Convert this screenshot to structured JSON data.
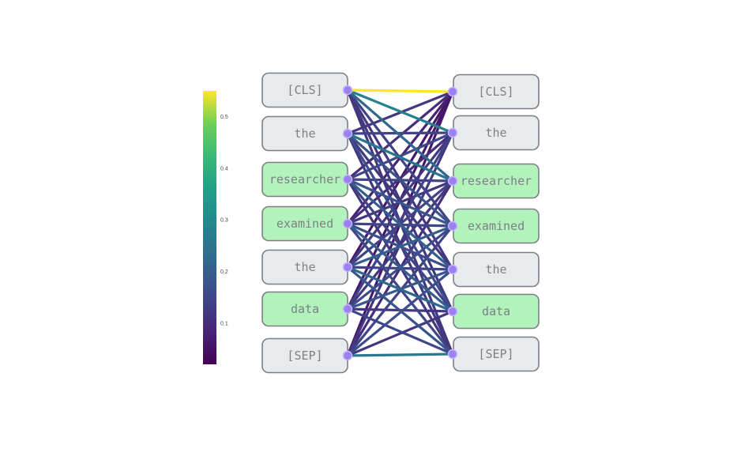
{
  "colorbar": {
    "ticks": [
      "0.1",
      "0.2",
      "0.3",
      "0.4",
      "0.5"
    ],
    "tick_values": [
      0.1,
      0.2,
      0.3,
      0.4,
      0.5
    ],
    "range": [
      0.02,
      0.55
    ],
    "colormap": "viridis"
  },
  "tokens": {
    "left": [
      {
        "label": "[CLS]",
        "highlighted": false
      },
      {
        "label": "the",
        "highlighted": false
      },
      {
        "label": "researcher",
        "highlighted": true
      },
      {
        "label": "examined",
        "highlighted": true
      },
      {
        "label": "the",
        "highlighted": false
      },
      {
        "label": "data",
        "highlighted": true
      },
      {
        "label": "[SEP]",
        "highlighted": false
      }
    ],
    "right": [
      {
        "label": "[CLS]",
        "highlighted": false
      },
      {
        "label": "the",
        "highlighted": false
      },
      {
        "label": "researcher",
        "highlighted": true
      },
      {
        "label": "examined",
        "highlighted": true
      },
      {
        "label": "the",
        "highlighted": false
      },
      {
        "label": "data",
        "highlighted": true
      },
      {
        "label": "[SEP]",
        "highlighted": false
      }
    ]
  },
  "attention": [
    [
      0.55,
      0.28,
      0.22,
      0.14,
      0.12,
      0.12,
      0.12
    ],
    [
      0.12,
      0.14,
      0.25,
      0.18,
      0.12,
      0.16,
      0.12
    ],
    [
      0.1,
      0.15,
      0.14,
      0.18,
      0.2,
      0.14,
      0.12
    ],
    [
      0.08,
      0.1,
      0.12,
      0.14,
      0.16,
      0.2,
      0.15
    ],
    [
      0.06,
      0.12,
      0.14,
      0.2,
      0.14,
      0.22,
      0.18
    ],
    [
      0.06,
      0.14,
      0.12,
      0.16,
      0.18,
      0.12,
      0.15
    ],
    [
      0.06,
      0.12,
      0.1,
      0.14,
      0.16,
      0.12,
      0.26
    ]
  ],
  "colors": {
    "box_fill": "#e8ebee",
    "box_fill_highlight": "#b2f2bb",
    "box_stroke": "#7b7f85",
    "node": "#9b80f2",
    "node_inner": "#c6b6ff"
  }
}
